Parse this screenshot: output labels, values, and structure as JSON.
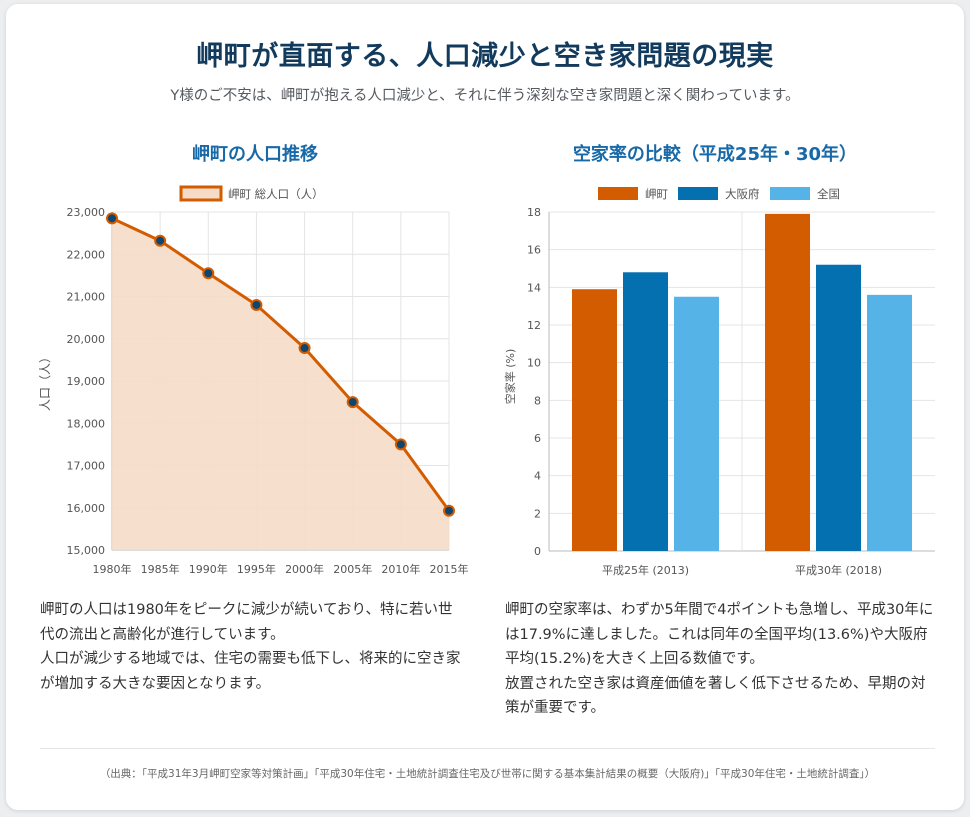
{
  "header": {
    "title": "岬町が直面する、人口減少と空き家問題の現実",
    "subtitle": "Y様のご不安は、岬町が抱える人口減少と、それに伴う深刻な空き家問題と深く関わっています。"
  },
  "colors": {
    "misaki": "#d35c00",
    "osaka": "#0570b0",
    "national": "#55b3e8",
    "line_fill": "#f6dcc8",
    "heading": "#123a5c",
    "chart_heading": "#1869a8"
  },
  "chart_data": [
    {
      "type": "line",
      "title": "岬町の人口推移",
      "legend": "岬町 総人口（人）",
      "categories": [
        "1980年",
        "1985年",
        "1990年",
        "1995年",
        "2000年",
        "2005年",
        "2010年",
        "2015年"
      ],
      "values": [
        22850,
        22320,
        21550,
        20800,
        19780,
        18500,
        17500,
        15930
      ],
      "ylabel": "人口（人）",
      "ylim": [
        15000,
        23000
      ],
      "yticks": [
        23000,
        22000,
        21000,
        20000,
        19000,
        18000,
        17000,
        16000,
        15000
      ],
      "ytick_labels": [
        "23,000",
        "22,000",
        "21,000",
        "20,000",
        "19,000",
        "18,000",
        "17,000",
        "16,000",
        "15,000"
      ],
      "filled": true
    },
    {
      "type": "bar",
      "title": "空家率の比較（平成25年・30年）",
      "categories": [
        "平成25年 (2013)",
        "平成30年 (2018)"
      ],
      "series": [
        {
          "name": "岬町",
          "values": [
            13.9,
            17.9
          ]
        },
        {
          "name": "大阪府",
          "values": [
            14.8,
            15.2
          ]
        },
        {
          "name": "全国",
          "values": [
            13.5,
            13.6
          ]
        }
      ],
      "ylabel": "空家率 (%)",
      "ylim": [
        0,
        18
      ],
      "yticks": [
        18,
        16,
        14,
        12,
        10,
        8,
        6,
        4,
        2,
        0
      ]
    }
  ],
  "descriptions": {
    "left": [
      "岬町の人口は1980年をピークに減少が続いており、特に若い世代の流出と高齢化が進行しています。",
      "人口が減少する地域では、住宅の需要も低下し、将来的に空き家が増加する大きな要因となります。"
    ],
    "right": [
      "岬町の空家率は、わずか5年間で4ポイントも急増し、平成30年には17.9%に達しました。これは同年の全国平均(13.6%)や大阪府平均(15.2%)を大きく上回る数値です。",
      "放置された空き家は資産価値を著しく低下させるため、早期の対策が重要です。"
    ]
  },
  "source": "（出典：「平成31年3月岬町空家等対策計画」「平成30年住宅・土地統計調査住宅及び世帯に関する基本集計結果の概要（大阪府)」「平成30年住宅・土地統計調査」）"
}
